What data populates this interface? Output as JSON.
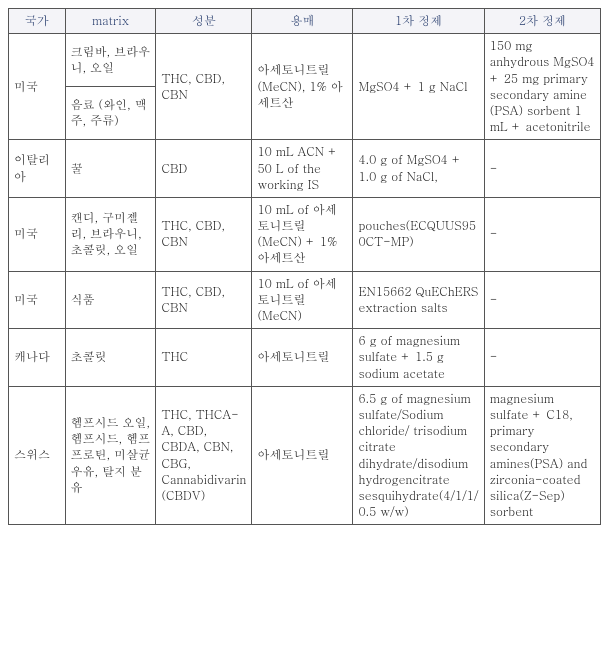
{
  "table": {
    "columns": [
      "국가",
      "matrix",
      "성분",
      "용매",
      "1차 정제",
      "2차 정제"
    ],
    "header_bg": "#f4f4f8",
    "header_color": "#243a6b",
    "border_color": "#555555",
    "rows": [
      {
        "country": "미국",
        "matrix1": "크림바, 브라우니, 오일",
        "matrix2": "음료 (와인, 맥주, 주류)",
        "component": "THC, CBD, CBN",
        "solvent": "아세토니트릴 (MeCN), 1% 아세트산",
        "purif1": "MgSO4 + 1 g NaCl",
        "purif2": "150 mg anhydrous MgSO4 + 25 mg primary secondary amine (PSA) sorbent 1 mL + acetonitrile"
      },
      {
        "country": "이탈리아",
        "matrix": "꿀",
        "component": "CBD",
        "solvent": "10 mL ACN + 50 L of the working IS",
        "purif1": "4.0 g of MgSO4 + 1.0 g of NaCl,",
        "purif2": "-"
      },
      {
        "country": "미국",
        "matrix": "캔디, 구미젤리, 브라우니, 초콜릿, 오일",
        "component": "THC, CBD, CBN",
        "solvent": "10 mL of 아세토니트릴 (MeCN) + 1% 아세트산",
        "purif1": "pouches(ECQUUS950CT-MP)",
        "purif2": "-"
      },
      {
        "country": "미국",
        "matrix": "식품",
        "component": "THC, CBD, CBN",
        "solvent": "10 mL of 아세토니트릴 (MeCN)",
        "purif1": "EN15662 QuEChERS extraction salts",
        "purif2": "-"
      },
      {
        "country": "캐나다",
        "matrix": "초콜릿",
        "component": "THC",
        "solvent": "아세토니트릴",
        "purif1": "6 g of magnesium sulfate + 1.5 g sodium acetate",
        "purif2": "-"
      },
      {
        "country": "스위스",
        "matrix": "헴프시드 오일, 헴프시드, 헴프프로틴, 미살균 우유, 탈지 분유",
        "component": "THC, THCA-A, CBD, CBDA, CBN, CBG, Cannabidivarin(CBDV)",
        "solvent": "아세토니트릴",
        "purif1": "6.5 g of magnesium sulfate/Sodium chloride/ trisodium citrate dihydrate/disodium hydrogencitrate sesquihydrate(4/1/1/0.5 w/w)",
        "purif2": "magnesium sulfate + C18, primary secondary amines(PSA) and zirconia-coated silica(Z-Sep) sorbent"
      }
    ]
  }
}
